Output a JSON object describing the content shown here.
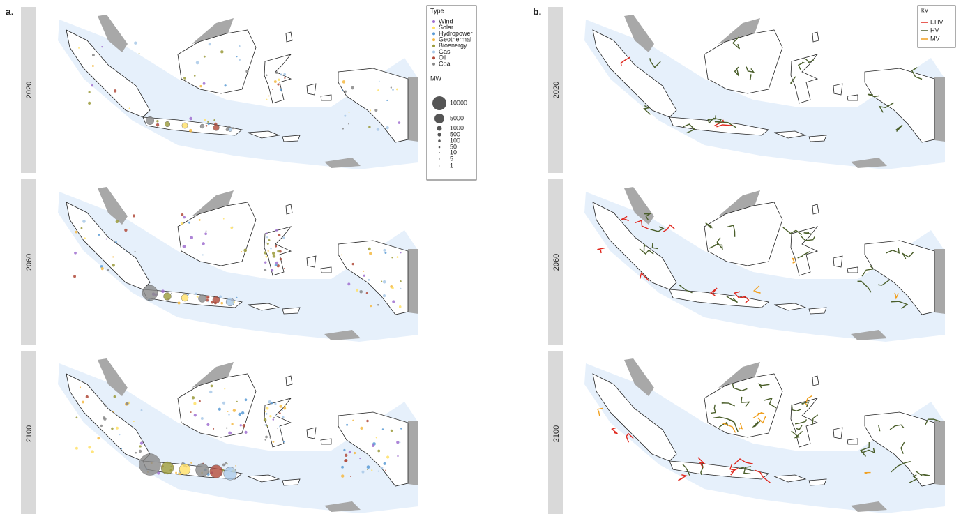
{
  "panels": [
    {
      "label": "a.",
      "rows": [
        "2020",
        "2060",
        "2100"
      ],
      "legend": {
        "title": "Type",
        "entries": [
          {
            "name": "Wind",
            "color": "#a070d0"
          },
          {
            "name": "Solar",
            "color": "#ffe066"
          },
          {
            "name": "Hydropower",
            "color": "#5b9bd5"
          },
          {
            "name": "Geothermal",
            "color": "#f5b942"
          },
          {
            "name": "Bioenergy",
            "color": "#9a9a3a"
          },
          {
            "name": "Gas",
            "color": "#a9c9e8"
          },
          {
            "name": "Oil",
            "color": "#b04a3a"
          },
          {
            "name": "Coal",
            "color": "#888888"
          }
        ],
        "size_title": "MW",
        "sizes": [
          "10000",
          "5000",
          "1000",
          "500",
          "100",
          "50",
          "10",
          "5",
          "1"
        ]
      }
    },
    {
      "label": "b.",
      "rows": [
        "2020",
        "2060",
        "2100"
      ],
      "legend": {
        "title": "kV",
        "entries": [
          {
            "name": "EHV",
            "color": "#e0281e"
          },
          {
            "name": "HV",
            "color": "#4a5e2a"
          },
          {
            "name": "MV",
            "color": "#f0a020"
          }
        ]
      }
    }
  ]
}
